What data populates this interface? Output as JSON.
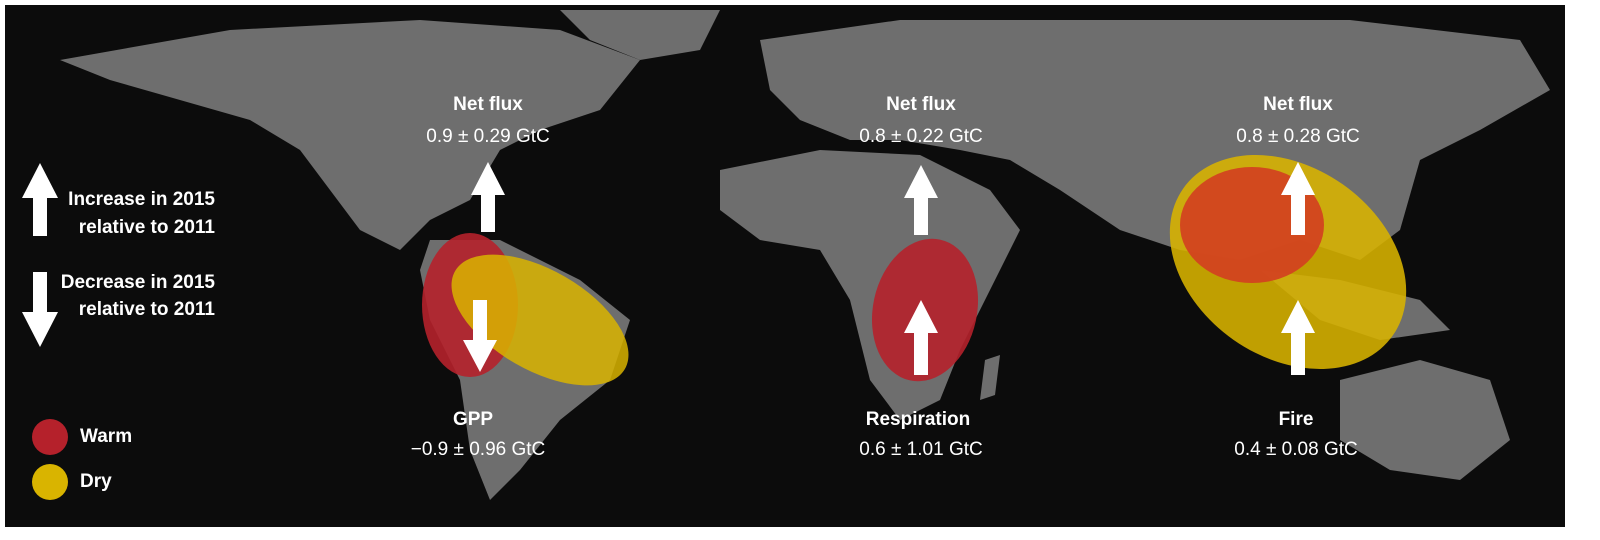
{
  "legend": {
    "increase": [
      "Increase in 2015",
      "relative to 2011"
    ],
    "decrease": [
      "Decrease in 2015",
      "relative to 2011"
    ],
    "colors": [
      {
        "label": "Warm",
        "color": "#b5212b"
      },
      {
        "label": "Dry",
        "color": "#d9b400"
      }
    ]
  },
  "regions": [
    {
      "top_label": "Net flux",
      "top_value": "0.9 ± 0.29 GtC",
      "bottom_label": "GPP",
      "bottom_value": "−0.9 ± 0.96 GtC"
    },
    {
      "top_label": "Net flux",
      "top_value": "0.8 ± 0.22 GtC",
      "bottom_label": "Respiration",
      "bottom_value": "0.6 ± 1.01  GtC"
    },
    {
      "top_label": "Net flux",
      "top_value": "0.8 ± 0.28 GtC",
      "bottom_label": "Fire",
      "bottom_value": "0.4 ± 0.08  GtC"
    }
  ]
}
